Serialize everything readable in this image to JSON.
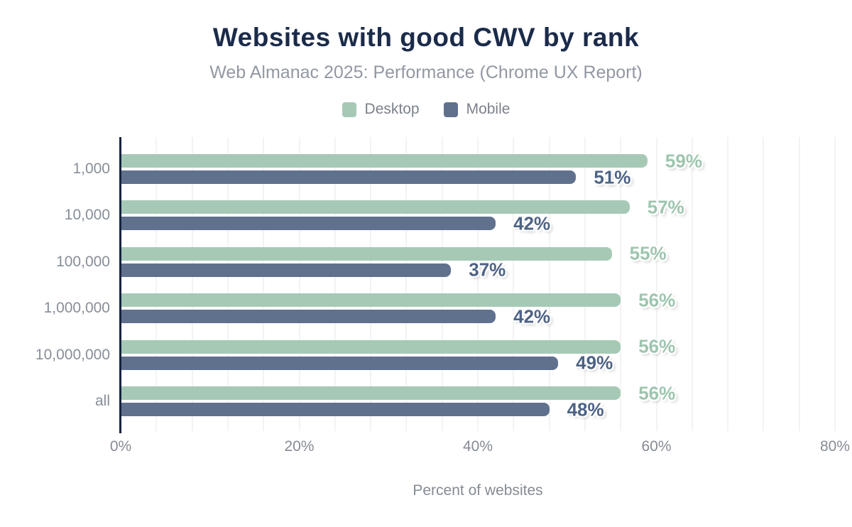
{
  "title": "Websites with good CWV by rank",
  "subtitle": "Web Almanac 2025: Performance (Chrome UX Report)",
  "legend": {
    "items": [
      {
        "label": "Desktop",
        "color": "#a6c9b6"
      },
      {
        "label": "Mobile",
        "color": "#60718e"
      }
    ]
  },
  "colors": {
    "title": "#1b2b4a",
    "subtitle": "#9298a3",
    "legend_text": "#7c828b",
    "axis_line": "#16233f",
    "gridline": "#f3f3f3",
    "category_label": "#878e98",
    "tick_label": "#858b94",
    "x_title": "#858b94",
    "desktop_bar": "#a6c9b6",
    "mobile_bar": "#60718e",
    "desktop_value_label": "#9ec5ae",
    "mobile_value_label": "#4d6385"
  },
  "chart_data": {
    "type": "bar",
    "orientation": "horizontal",
    "title": "Websites with good CWV by rank",
    "subtitle": "Web Almanac 2025: Performance (Chrome UX Report)",
    "xlabel": "Percent of websites",
    "xlim": [
      0,
      80
    ],
    "grid": "minor vertical gridlines every 4%",
    "grid_step_pct": 4,
    "legend_position": "top center",
    "categories": [
      "1,000",
      "10,000",
      "100,000",
      "1,000,000",
      "10,000,000",
      "all"
    ],
    "x_ticks": [
      {
        "value": 0,
        "label": "0%"
      },
      {
        "value": 20,
        "label": "20%"
      },
      {
        "value": 40,
        "label": "40%"
      },
      {
        "value": 60,
        "label": "60%"
      },
      {
        "value": 80,
        "label": "80%"
      }
    ],
    "series": [
      {
        "name": "Desktop",
        "color": "#a6c9b6",
        "label_color": "#9ec5ae",
        "values": [
          59,
          57,
          55,
          56,
          56,
          56
        ],
        "labels": [
          "59%",
          "57%",
          "55%",
          "56%",
          "56%",
          "56%"
        ]
      },
      {
        "name": "Mobile",
        "color": "#60718e",
        "label_color": "#4d6385",
        "values": [
          51,
          42,
          37,
          42,
          49,
          48
        ],
        "labels": [
          "51%",
          "42%",
          "37%",
          "42%",
          "49%",
          "48%"
        ]
      }
    ]
  }
}
